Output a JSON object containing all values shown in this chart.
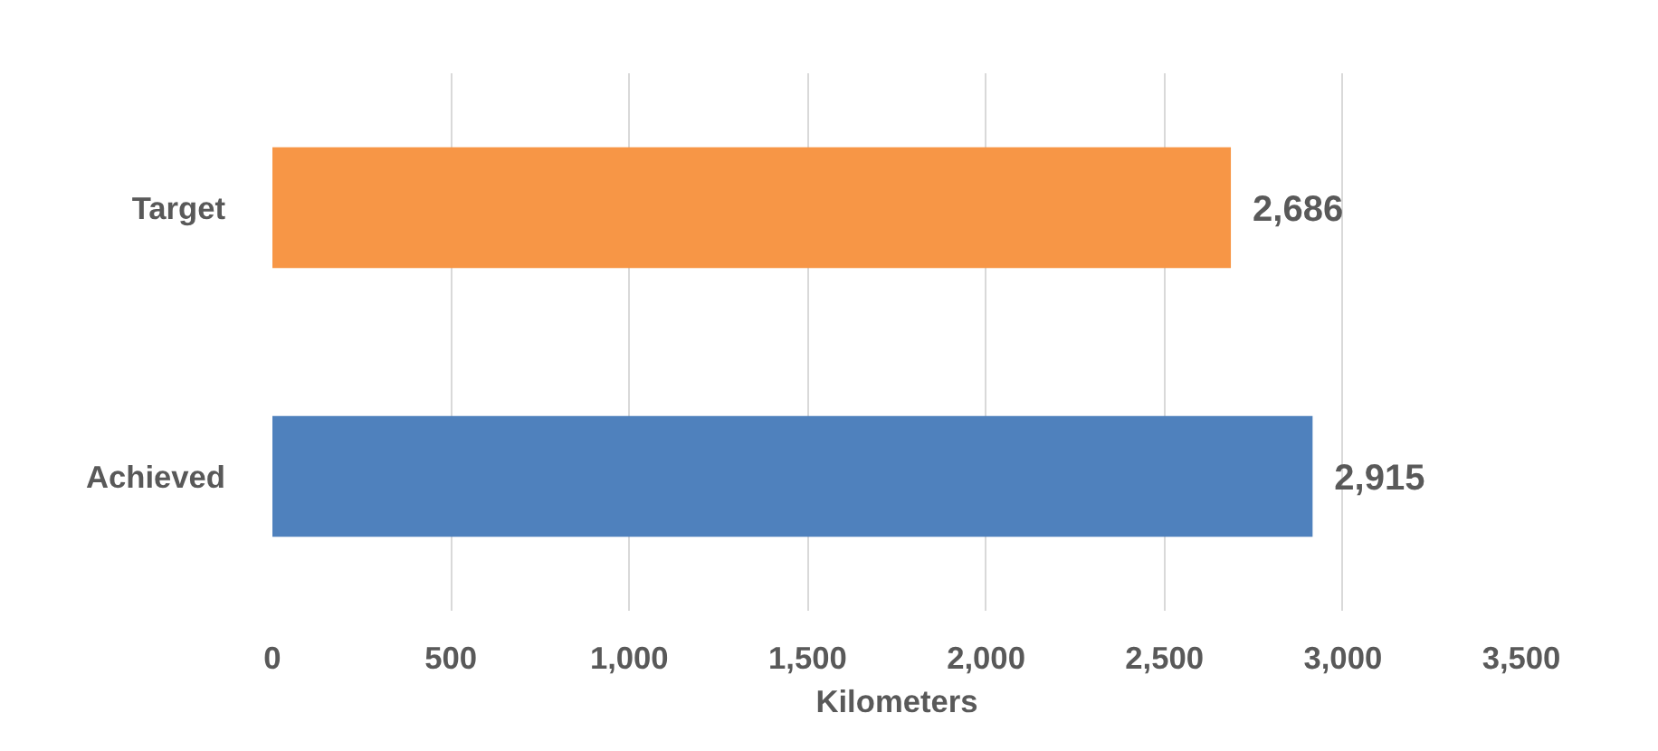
{
  "chart_data": {
    "type": "bar",
    "orientation": "horizontal",
    "xlabel": "Kilometers",
    "categories": [
      "Target",
      "Achieved"
    ],
    "values": [
      2686,
      2915
    ],
    "colors": [
      "#f79646",
      "#4f81bd"
    ],
    "value_labels": [
      "2,686",
      "2,915"
    ],
    "xlim": [
      0,
      3500
    ],
    "xticks": [
      0,
      500,
      {
        "value": 1000,
        "label": "1,000"
      },
      {
        "value": 1500,
        "label": "1,500"
      },
      {
        "value": 2000,
        "label": "2,000"
      },
      {
        "value": 2500,
        "label": "2,500"
      },
      {
        "value": 3000,
        "label": "3,000"
      },
      {
        "value": 3500,
        "label": "3,500"
      }
    ],
    "grid": "x"
  }
}
